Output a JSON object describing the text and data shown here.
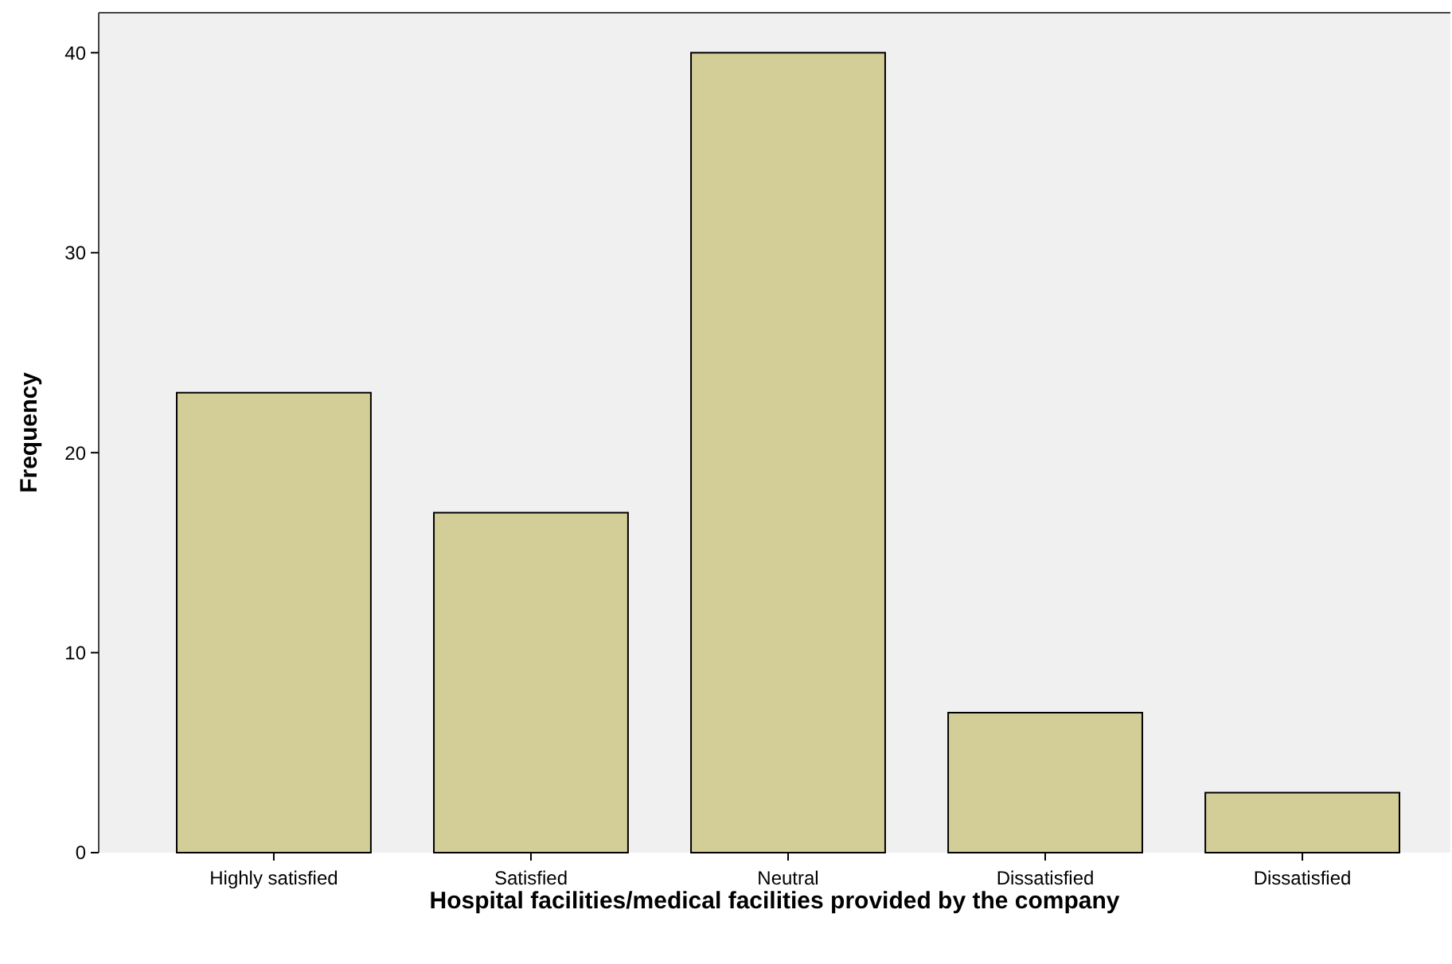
{
  "chart_data": {
    "type": "bar",
    "xlabel": "Hospital facilities/medical facilities provided by the company",
    "ylabel": "Frequency",
    "categories": [
      "Highly satisfied",
      "Satisfied",
      "Neutral",
      "Dissatisfied",
      "Dissatisfied"
    ],
    "values": [
      23,
      17,
      40,
      7,
      3
    ],
    "color": "#d3ce97",
    "ylim": [
      0,
      42
    ],
    "yticks": [
      0,
      10,
      20,
      30,
      40
    ],
    "grid": false
  }
}
